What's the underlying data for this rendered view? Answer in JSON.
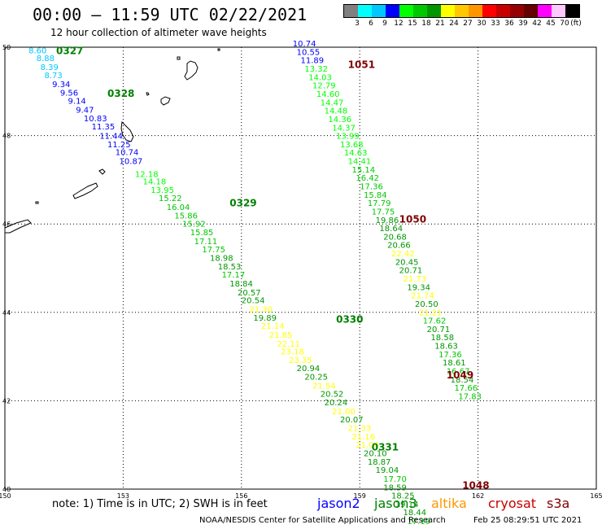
{
  "header": {
    "title": "00:00 – 11:59 UTC 02/22/2021",
    "subtitle": "12 hour collection of altimeter wave heights"
  },
  "legend": {
    "unit": "(ft)",
    "labels": [
      "3",
      "6",
      "9",
      "12",
      "15",
      "18",
      "21",
      "24",
      "27",
      "30",
      "33",
      "36",
      "39",
      "42",
      "45",
      "70"
    ],
    "colors": [
      "#808080",
      "#00ffff",
      "#00c8ff",
      "#0000ff",
      "#00ff00",
      "#00c800",
      "#009600",
      "#ffff00",
      "#ffc800",
      "#ff9600",
      "#ff0000",
      "#c80000",
      "#960000",
      "#640000",
      "#ff00ff",
      "#ffc8ff",
      "#000000"
    ]
  },
  "axes": {
    "x_ticks": [
      "150",
      "153",
      "156",
      "159",
      "162",
      "165"
    ],
    "y_ticks": [
      "50",
      "48",
      "46",
      "44",
      "42",
      "40"
    ]
  },
  "chart_data": {
    "type": "scatter",
    "track_times": [
      {
        "label": "0327",
        "lon": 151.3,
        "lat": 49.94,
        "color": "#008000"
      },
      {
        "label": "0328",
        "lon": 152.6,
        "lat": 48.97,
        "color": "#008000"
      },
      {
        "label": "0329",
        "lon": 155.7,
        "lat": 46.49,
        "color": "#008000"
      },
      {
        "label": "0330",
        "lon": 158.4,
        "lat": 43.86,
        "color": "#008000"
      },
      {
        "label": "0331",
        "lon": 159.3,
        "lat": 40.97,
        "color": "#008000"
      },
      {
        "label": "1051",
        "lon": 158.7,
        "lat": 49.62,
        "color": "#800000"
      },
      {
        "label": "1050",
        "lon": 160.0,
        "lat": 46.12,
        "color": "#800000"
      },
      {
        "label": "1049",
        "lon": 161.2,
        "lat": 42.6,
        "color": "#800000"
      },
      {
        "label": "1048",
        "lon": 161.6,
        "lat": 40.1,
        "color": "#800000"
      }
    ],
    "tracks": [
      {
        "name": "track-a",
        "color_class": "jason3",
        "points": [
          {
            "lon": 150.6,
            "lat": 49.94,
            "v": "8.60"
          },
          {
            "lon": 150.8,
            "lat": 49.76,
            "v": "8.88"
          },
          {
            "lon": 150.9,
            "lat": 49.56,
            "v": "8.39"
          },
          {
            "lon": 151.0,
            "lat": 49.37,
            "v": "8.73"
          },
          {
            "lon": 151.2,
            "lat": 49.17,
            "v": "9.34"
          },
          {
            "lon": 151.4,
            "lat": 48.98,
            "v": "9.56"
          },
          {
            "lon": 151.6,
            "lat": 48.79,
            "v": "9.14"
          },
          {
            "lon": 151.8,
            "lat": 48.59,
            "v": "9.47"
          },
          {
            "lon": 152.0,
            "lat": 48.4,
            "v": "10.83"
          },
          {
            "lon": 152.2,
            "lat": 48.21,
            "v": "11.35"
          },
          {
            "lon": 152.4,
            "lat": 48.0,
            "v": "11.44"
          },
          {
            "lon": 152.6,
            "lat": 47.81,
            "v": "11.25"
          },
          {
            "lon": 152.8,
            "lat": 47.63,
            "v": "10.74"
          },
          {
            "lon": 152.9,
            "lat": 47.43,
            "v": "10.87"
          },
          {
            "lon": 153.3,
            "lat": 47.14,
            "v": "12.18"
          },
          {
            "lon": 153.5,
            "lat": 46.97,
            "v": "14.18"
          },
          {
            "lon": 153.7,
            "lat": 46.78,
            "v": "13.95"
          },
          {
            "lon": 153.9,
            "lat": 46.59,
            "v": "15.22"
          },
          {
            "lon": 154.1,
            "lat": 46.39,
            "v": "16.04"
          },
          {
            "lon": 154.3,
            "lat": 46.2,
            "v": "15.86"
          },
          {
            "lon": 154.5,
            "lat": 46.01,
            "v": "15.92"
          },
          {
            "lon": 154.7,
            "lat": 45.82,
            "v": "15.85"
          },
          {
            "lon": 154.8,
            "lat": 45.62,
            "v": "17.11"
          },
          {
            "lon": 155.0,
            "lat": 45.43,
            "v": "17.75"
          },
          {
            "lon": 155.2,
            "lat": 45.24,
            "v": "18.98"
          },
          {
            "lon": 155.4,
            "lat": 45.05,
            "v": "18.53"
          },
          {
            "lon": 155.5,
            "lat": 44.86,
            "v": "17.17"
          },
          {
            "lon": 155.7,
            "lat": 44.66,
            "v": "18.84"
          },
          {
            "lon": 155.9,
            "lat": 44.46,
            "v": "20.57"
          },
          {
            "lon": 156.0,
            "lat": 44.28,
            "v": "20.54"
          },
          {
            "lon": 156.2,
            "lat": 44.08,
            "v": "21.30"
          },
          {
            "lon": 156.3,
            "lat": 43.89,
            "v": "19.89"
          },
          {
            "lon": 156.5,
            "lat": 43.7,
            "v": "21.14"
          },
          {
            "lon": 156.7,
            "lat": 43.5,
            "v": "21.85"
          },
          {
            "lon": 156.9,
            "lat": 43.3,
            "v": "22.11"
          },
          {
            "lon": 157.0,
            "lat": 43.12,
            "v": "23.18"
          },
          {
            "lon": 157.2,
            "lat": 42.93,
            "v": "23.35"
          },
          {
            "lon": 157.4,
            "lat": 42.74,
            "v": "20.94"
          },
          {
            "lon": 157.6,
            "lat": 42.55,
            "v": "20.25"
          },
          {
            "lon": 157.8,
            "lat": 42.35,
            "v": "21.54"
          },
          {
            "lon": 158.0,
            "lat": 42.16,
            "v": "20.52"
          },
          {
            "lon": 158.1,
            "lat": 41.97,
            "v": "20.24"
          },
          {
            "lon": 158.3,
            "lat": 41.77,
            "v": "21.00"
          },
          {
            "lon": 158.5,
            "lat": 41.58,
            "v": "20.07"
          },
          {
            "lon": 158.7,
            "lat": 41.39,
            "v": "21.33"
          },
          {
            "lon": 158.8,
            "lat": 41.2,
            "v": "21.16"
          },
          {
            "lon": 158.9,
            "lat": 41.01,
            "v": "21.04"
          },
          {
            "lon": 159.1,
            "lat": 40.82,
            "v": "20.10"
          },
          {
            "lon": 159.2,
            "lat": 40.63,
            "v": "18.87"
          },
          {
            "lon": 159.4,
            "lat": 40.44,
            "v": "19.04"
          },
          {
            "lon": 159.6,
            "lat": 40.24,
            "v": "17.70"
          },
          {
            "lon": 159.6,
            "lat": 40.05,
            "v": "18.59"
          },
          {
            "lon": 159.8,
            "lat": 39.86,
            "v": "18.25"
          },
          {
            "lon": 159.9,
            "lat": 39.67,
            "v": "19.14"
          },
          {
            "lon": 160.1,
            "lat": 39.48,
            "v": "18.44"
          },
          {
            "lon": 160.2,
            "lat": 39.28,
            "v": "17.19"
          }
        ]
      },
      {
        "name": "track-b",
        "color_class": "cryosat",
        "points": [
          {
            "lon": 157.3,
            "lat": 50.09,
            "v": "10.74"
          },
          {
            "lon": 157.4,
            "lat": 49.9,
            "v": "10.55"
          },
          {
            "lon": 157.5,
            "lat": 49.71,
            "v": "11.89"
          },
          {
            "lon": 157.6,
            "lat": 49.52,
            "v": "13.32"
          },
          {
            "lon": 157.7,
            "lat": 49.33,
            "v": "14.03"
          },
          {
            "lon": 157.8,
            "lat": 49.14,
            "v": "12.79"
          },
          {
            "lon": 157.9,
            "lat": 48.95,
            "v": "14.60"
          },
          {
            "lon": 158.0,
            "lat": 48.76,
            "v": "14.47"
          },
          {
            "lon": 158.1,
            "lat": 48.57,
            "v": "14.48"
          },
          {
            "lon": 158.2,
            "lat": 48.38,
            "v": "14.36"
          },
          {
            "lon": 158.3,
            "lat": 48.19,
            "v": "14.37"
          },
          {
            "lon": 158.4,
            "lat": 48.0,
            "v": "13.99"
          },
          {
            "lon": 158.5,
            "lat": 47.81,
            "v": "13.68"
          },
          {
            "lon": 158.6,
            "lat": 47.62,
            "v": "14.63"
          },
          {
            "lon": 158.7,
            "lat": 47.43,
            "v": "14.41"
          },
          {
            "lon": 158.8,
            "lat": 47.24,
            "v": "15.14"
          },
          {
            "lon": 158.9,
            "lat": 47.05,
            "v": "16.42"
          },
          {
            "lon": 159.0,
            "lat": 46.86,
            "v": "17.36"
          },
          {
            "lon": 159.1,
            "lat": 46.67,
            "v": "15.84"
          },
          {
            "lon": 159.2,
            "lat": 46.48,
            "v": "17.79"
          },
          {
            "lon": 159.3,
            "lat": 46.29,
            "v": "17.75"
          },
          {
            "lon": 159.4,
            "lat": 46.1,
            "v": "19.86"
          },
          {
            "lon": 159.5,
            "lat": 45.91,
            "v": "18.64"
          },
          {
            "lon": 159.6,
            "lat": 45.72,
            "v": "20.68"
          },
          {
            "lon": 159.7,
            "lat": 45.53,
            "v": "20.66"
          },
          {
            "lon": 159.8,
            "lat": 45.34,
            "v": "22.42"
          },
          {
            "lon": 159.9,
            "lat": 45.15,
            "v": "20.45"
          },
          {
            "lon": 160.0,
            "lat": 44.96,
            "v": "20.71"
          },
          {
            "lon": 160.1,
            "lat": 44.77,
            "v": "21.73"
          },
          {
            "lon": 160.2,
            "lat": 44.58,
            "v": "19.34"
          },
          {
            "lon": 160.3,
            "lat": 44.39,
            "v": "21.74"
          },
          {
            "lon": 160.4,
            "lat": 44.2,
            "v": "20.50"
          },
          {
            "lon": 160.5,
            "lat": 44.01,
            "v": "21.21"
          },
          {
            "lon": 160.6,
            "lat": 43.82,
            "v": "17.62"
          },
          {
            "lon": 160.7,
            "lat": 43.63,
            "v": "20.71"
          },
          {
            "lon": 160.8,
            "lat": 43.44,
            "v": "18.58"
          },
          {
            "lon": 160.9,
            "lat": 43.25,
            "v": "18.63"
          },
          {
            "lon": 161.0,
            "lat": 43.06,
            "v": "17.36"
          },
          {
            "lon": 161.1,
            "lat": 42.87,
            "v": "18.61"
          },
          {
            "lon": 161.2,
            "lat": 42.68,
            "v": "16.67"
          },
          {
            "lon": 161.3,
            "lat": 42.49,
            "v": "18.54"
          },
          {
            "lon": 161.4,
            "lat": 42.3,
            "v": "17.66"
          },
          {
            "lon": 161.5,
            "lat": 42.11,
            "v": "17.83"
          }
        ]
      }
    ]
  },
  "footer": {
    "note": "note:  1) Time is in UTC;  2) SWH is in feet",
    "satellites": [
      {
        "name": "jason2",
        "color": "#0000ff"
      },
      {
        "name": "jason3",
        "color": "#008000"
      },
      {
        "name": "altika",
        "color": "#ff9600"
      },
      {
        "name": "cryosat",
        "color": "#c80000"
      },
      {
        "name": "s3a",
        "color": "#800000"
      }
    ],
    "credit": "NOAA/NESDIS Center for Satellite Applications and Research",
    "timestamp": "Feb 25 08:29:51 UTC 2021"
  }
}
